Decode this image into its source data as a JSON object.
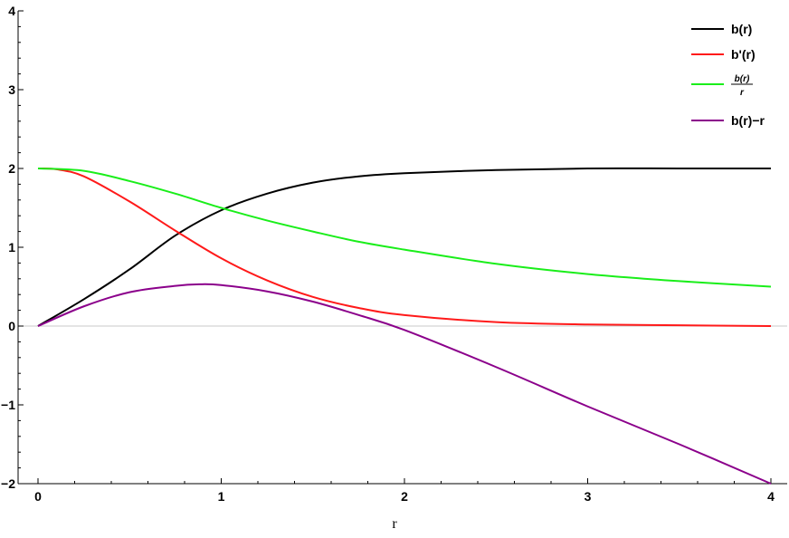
{
  "chart_data": {
    "type": "line",
    "title": "",
    "xlabel": "r",
    "ylabel": "",
    "xlim": [
      0,
      4
    ],
    "ylim": [
      -2,
      4
    ],
    "x_ticks": [
      "0",
      "1",
      "2",
      "3",
      "4"
    ],
    "y_ticks": [
      "−2",
      "−1",
      "0",
      "1",
      "2",
      "3",
      "4"
    ],
    "grid": false,
    "zero_line": true,
    "legend_position": "top-right",
    "series": [
      {
        "name": "b(r)",
        "color": "#000000",
        "x": [
          0,
          0.25,
          0.5,
          0.75,
          1,
          1.25,
          1.5,
          1.75,
          2,
          2.5,
          3,
          3.5,
          4
        ],
        "y": [
          0,
          0.34,
          0.72,
          1.15,
          1.47,
          1.68,
          1.82,
          1.9,
          1.94,
          1.98,
          2.0,
          2.0,
          2.0
        ]
      },
      {
        "name": "b'(r)",
        "color": "#ff1a1a",
        "x": [
          0,
          0.1,
          0.25,
          0.5,
          0.75,
          1,
          1.25,
          1.5,
          1.75,
          2,
          2.5,
          3,
          3.5,
          4
        ],
        "y": [
          2.0,
          1.99,
          1.9,
          1.58,
          1.21,
          0.86,
          0.58,
          0.37,
          0.23,
          0.14,
          0.05,
          0.02,
          0.01,
          0.0
        ]
      },
      {
        "name": "b(r)/r",
        "legend_numerator": "b(r)",
        "legend_denominator": "r",
        "color": "#1aee1a",
        "x": [
          0,
          0.25,
          0.5,
          0.75,
          1,
          1.25,
          1.5,
          1.75,
          2,
          2.5,
          3,
          3.5,
          4
        ],
        "y": [
          2.0,
          1.97,
          1.84,
          1.68,
          1.5,
          1.34,
          1.2,
          1.07,
          0.97,
          0.79,
          0.66,
          0.57,
          0.5
        ]
      },
      {
        "name": "b(r)−r",
        "color": "#8b008b",
        "x": [
          0,
          0.25,
          0.5,
          0.75,
          0.88,
          1,
          1.25,
          1.5,
          1.75,
          2,
          2.5,
          3,
          3.5,
          4
        ],
        "y": [
          0,
          0.25,
          0.43,
          0.51,
          0.53,
          0.52,
          0.44,
          0.31,
          0.14,
          -0.05,
          -0.52,
          -1.02,
          -1.5,
          -2.0
        ]
      }
    ]
  }
}
